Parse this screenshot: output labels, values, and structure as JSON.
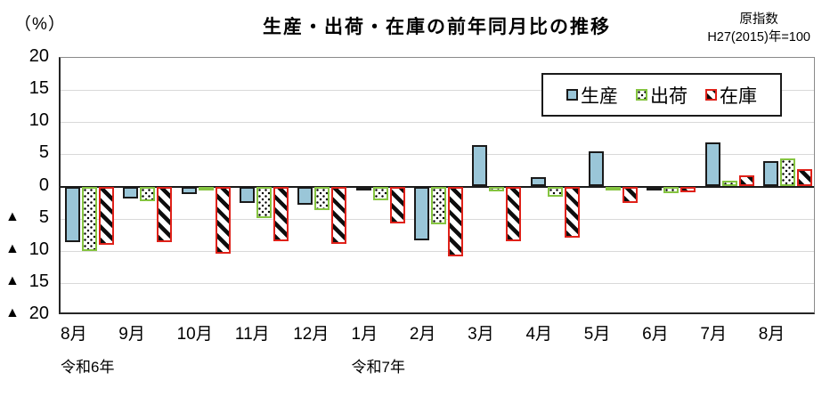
{
  "header": {
    "unit_label": "（%）",
    "title": "生産・出荷・在庫の前年同月比の推移",
    "note_line1": "原指数",
    "note_line2": "H27(2015)年=100"
  },
  "chart_data": {
    "type": "bar",
    "title": "生産・出荷・在庫の前年同月比の推移",
    "ylabel": "（%）",
    "ylim": [
      -20,
      20
    ],
    "yticks": [
      20,
      15,
      10,
      5,
      0,
      -5,
      -10,
      -15,
      -20
    ],
    "negative_tick_prefix": "▲",
    "grid": true,
    "legend_position": "top-right-inside",
    "categories": [
      "8月",
      "9月",
      "10月",
      "11月",
      "12月",
      "1月",
      "2月",
      "3月",
      "4月",
      "5月",
      "6月",
      "7月",
      "8月"
    ],
    "x_year_labels": [
      {
        "label": "令和6年",
        "category_index": 0
      },
      {
        "label": "令和7年",
        "category_index": 5
      }
    ],
    "series": [
      {
        "name": "生産",
        "pattern": "solid",
        "fill": "#9ac6d8",
        "border": "#1a1a1a",
        "values": [
          -8.7,
          -1.9,
          -1.2,
          -2.5,
          -2.8,
          -0.5,
          -8.4,
          6.5,
          1.4,
          5.4,
          -0.3,
          6.8,
          3.9
        ]
      },
      {
        "name": "出荷",
        "pattern": "dots",
        "fill": "#ffffff",
        "border": "#85c440",
        "values": [
          -10.1,
          -2.3,
          -0.2,
          -4.9,
          -3.7,
          -2.2,
          -5.9,
          -0.8,
          -1.6,
          -0.4,
          -1.0,
          0.9,
          4.3
        ]
      },
      {
        "name": "在庫",
        "pattern": "stripes",
        "fill": "#ffffff",
        "border": "#df2119",
        "values": [
          -9.0,
          -8.7,
          -10.4,
          -8.5,
          -8.9,
          -5.8,
          -10.8,
          -8.5,
          -7.9,
          -2.6,
          -0.9,
          1.7,
          2.7
        ]
      }
    ]
  }
}
